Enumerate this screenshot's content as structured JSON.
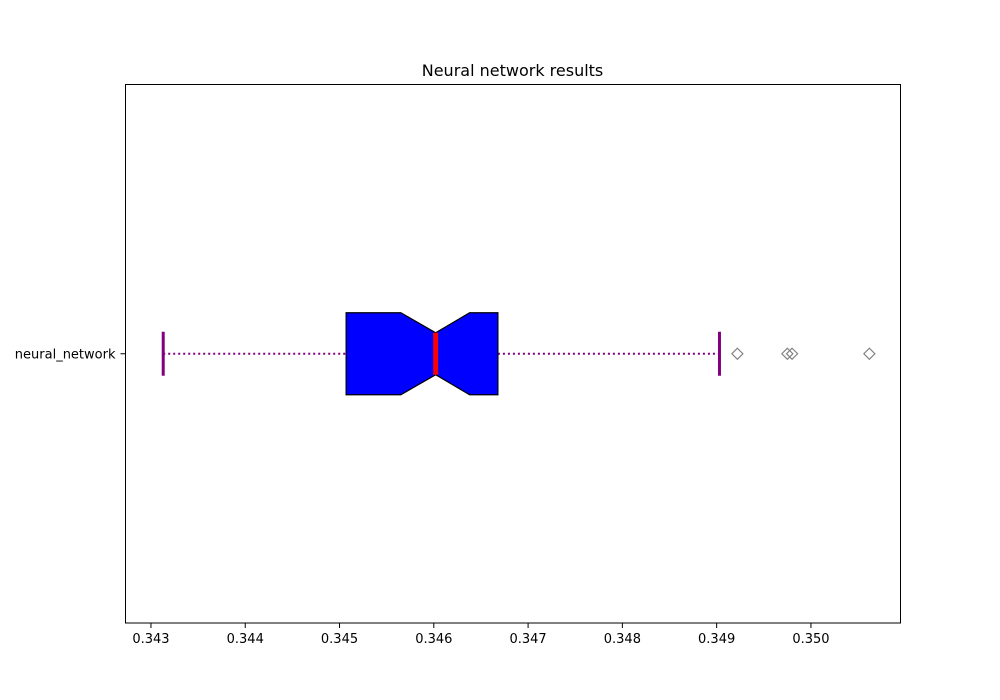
{
  "chart_data": {
    "type": "box",
    "orientation": "horizontal",
    "notched": true,
    "title": "Neural network results",
    "xlabel": "",
    "ylabel": "",
    "xlim": [
      0.34273,
      0.35095
    ],
    "x_ticks": [
      0.343,
      0.344,
      0.345,
      0.346,
      0.347,
      0.348,
      0.349,
      0.35
    ],
    "x_tick_labels": [
      "0.343",
      "0.344",
      "0.345",
      "0.346",
      "0.347",
      "0.348",
      "0.349",
      "0.350"
    ],
    "categories": [
      "neural_network"
    ],
    "boxes": [
      {
        "label": "neural_network",
        "whisker_low": 0.34313,
        "q1": 0.34507,
        "median": 0.34602,
        "q3": 0.34668,
        "whisker_high": 0.34903,
        "notch_low": 0.34565,
        "notch_high": 0.34638,
        "outliers": [
          0.34922,
          0.34975,
          0.3498,
          0.35062
        ]
      }
    ],
    "colors": {
      "box_fill": "#0000ff",
      "box_edge": "#000000",
      "median": "#ff0000",
      "whisker": "#800080",
      "cap": "#800080",
      "flier_edge": "#808080"
    }
  }
}
